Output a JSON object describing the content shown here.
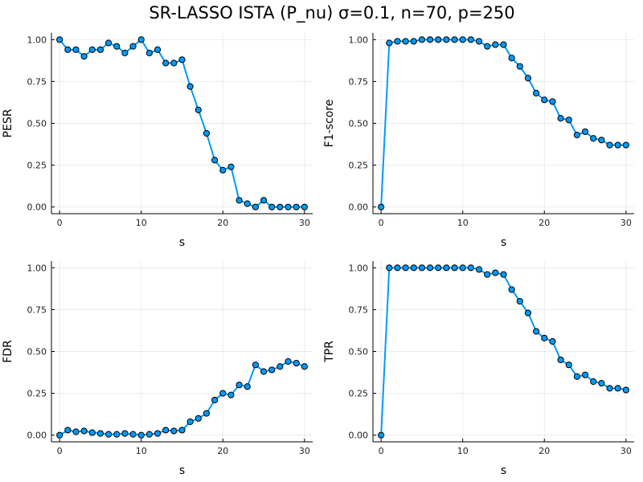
{
  "title": "SR-LASSO ISTA (P_nu) σ=0.1, n=70, p=250",
  "colors": {
    "series": "#009AFA",
    "marker_edge": "#000000"
  },
  "chart_data": [
    {
      "type": "line",
      "name": "pesr",
      "xlabel": "s",
      "ylabel": "PESR",
      "xlim": [
        -1,
        31
      ],
      "ylim": [
        -0.04,
        1.04
      ],
      "xticks": [
        0,
        10,
        20,
        30
      ],
      "xtick_labels": [
        "0",
        "10",
        "20",
        "30"
      ],
      "yticks": [
        0,
        0.25,
        0.5,
        0.75,
        1.0
      ],
      "ytick_labels": [
        "0.00",
        "0.25",
        "0.50",
        "0.75",
        "1.00"
      ],
      "grid": true,
      "x": [
        0,
        1,
        2,
        3,
        4,
        5,
        6,
        7,
        8,
        9,
        10,
        11,
        12,
        13,
        14,
        15,
        16,
        17,
        18,
        19,
        20,
        21,
        22,
        23,
        24,
        25,
        26,
        27,
        28,
        29,
        30
      ],
      "y": [
        1.0,
        0.94,
        0.94,
        0.9,
        0.94,
        0.94,
        0.98,
        0.96,
        0.92,
        0.96,
        1.0,
        0.92,
        0.94,
        0.86,
        0.86,
        0.88,
        0.72,
        0.58,
        0.44,
        0.28,
        0.22,
        0.24,
        0.04,
        0.02,
        0.0,
        0.04,
        0.0,
        0.0,
        0.0,
        0.0,
        0.0
      ]
    },
    {
      "type": "line",
      "name": "f1",
      "xlabel": "s",
      "ylabel": "F1-score",
      "xlim": [
        -1,
        31
      ],
      "ylim": [
        -0.04,
        1.04
      ],
      "xticks": [
        0,
        10,
        20,
        30
      ],
      "xtick_labels": [
        "0",
        "10",
        "20",
        "30"
      ],
      "yticks": [
        0,
        0.25,
        0.5,
        0.75,
        1.0
      ],
      "ytick_labels": [
        "0.00",
        "0.25",
        "0.50",
        "0.75",
        "1.00"
      ],
      "grid": true,
      "x": [
        0,
        1,
        2,
        3,
        4,
        5,
        6,
        7,
        8,
        9,
        10,
        11,
        12,
        13,
        14,
        15,
        16,
        17,
        18,
        19,
        20,
        21,
        22,
        23,
        24,
        25,
        26,
        27,
        28,
        29,
        30
      ],
      "y": [
        0.0,
        0.98,
        0.99,
        0.99,
        0.99,
        1.0,
        1.0,
        1.0,
        1.0,
        1.0,
        1.0,
        1.0,
        0.99,
        0.96,
        0.97,
        0.97,
        0.89,
        0.84,
        0.77,
        0.68,
        0.64,
        0.63,
        0.53,
        0.52,
        0.43,
        0.45,
        0.41,
        0.4,
        0.37,
        0.37,
        0.37
      ]
    },
    {
      "type": "line",
      "name": "fdr",
      "xlabel": "s",
      "ylabel": "FDR",
      "xlim": [
        -1,
        31
      ],
      "ylim": [
        -0.04,
        1.04
      ],
      "xticks": [
        0,
        10,
        20,
        30
      ],
      "xtick_labels": [
        "0",
        "10",
        "20",
        "30"
      ],
      "yticks": [
        0,
        0.25,
        0.5,
        0.75,
        1.0
      ],
      "ytick_labels": [
        "0.00",
        "0.25",
        "0.50",
        "0.75",
        "1.00"
      ],
      "grid": true,
      "x": [
        0,
        1,
        2,
        3,
        4,
        5,
        6,
        7,
        8,
        9,
        10,
        11,
        12,
        13,
        14,
        15,
        16,
        17,
        18,
        19,
        20,
        21,
        22,
        23,
        24,
        25,
        26,
        27,
        28,
        29,
        30
      ],
      "y": [
        0.0,
        0.03,
        0.02,
        0.025,
        0.015,
        0.01,
        0.005,
        0.005,
        0.01,
        0.005,
        0.0,
        0.005,
        0.01,
        0.03,
        0.025,
        0.03,
        0.08,
        0.1,
        0.13,
        0.21,
        0.25,
        0.24,
        0.3,
        0.29,
        0.42,
        0.38,
        0.39,
        0.41,
        0.44,
        0.43,
        0.41
      ]
    },
    {
      "type": "line",
      "name": "tpr",
      "xlabel": "s",
      "ylabel": "TPR",
      "xlim": [
        -1,
        31
      ],
      "ylim": [
        -0.04,
        1.04
      ],
      "xticks": [
        0,
        10,
        20,
        30
      ],
      "xtick_labels": [
        "0",
        "10",
        "20",
        "30"
      ],
      "yticks": [
        0,
        0.25,
        0.5,
        0.75,
        1.0
      ],
      "ytick_labels": [
        "0.00",
        "0.25",
        "0.50",
        "0.75",
        "1.00"
      ],
      "grid": true,
      "x": [
        0,
        1,
        2,
        3,
        4,
        5,
        6,
        7,
        8,
        9,
        10,
        11,
        12,
        13,
        14,
        15,
        16,
        17,
        18,
        19,
        20,
        21,
        22,
        23,
        24,
        25,
        26,
        27,
        28,
        29,
        30
      ],
      "y": [
        0.0,
        1.0,
        1.0,
        1.0,
        1.0,
        1.0,
        1.0,
        1.0,
        1.0,
        1.0,
        1.0,
        1.0,
        0.99,
        0.96,
        0.97,
        0.96,
        0.87,
        0.8,
        0.73,
        0.62,
        0.58,
        0.56,
        0.45,
        0.42,
        0.35,
        0.36,
        0.32,
        0.31,
        0.28,
        0.28,
        0.27
      ]
    }
  ]
}
